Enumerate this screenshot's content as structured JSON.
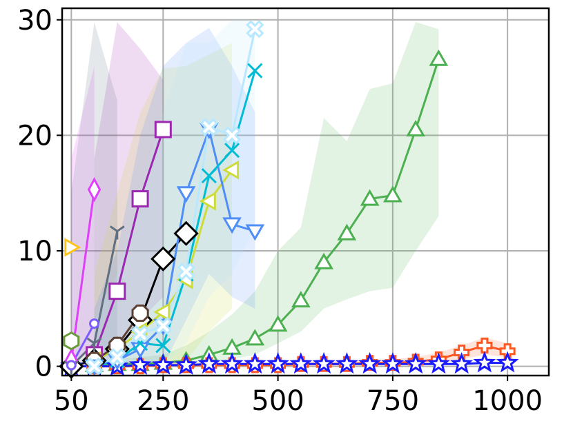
{
  "chart_data": {
    "type": "line",
    "title": "",
    "xlabel": "",
    "ylabel": "",
    "xlim": [
      30,
      1090
    ],
    "ylim": [
      -0.8,
      31
    ],
    "x_ticks": [
      50,
      250,
      500,
      750,
      1000
    ],
    "x_tick_labels": [
      "50",
      "250",
      "500",
      "750",
      "1000"
    ],
    "y_ticks": [
      0,
      10,
      20,
      30
    ],
    "y_tick_labels": [
      "0",
      "10",
      "20",
      "30"
    ],
    "grid": true,
    "legend": "none",
    "series": [
      {
        "color": "#4caf50",
        "marker": "triangle-up",
        "fill": true,
        "x": [
          100,
          150,
          200,
          250,
          300,
          350,
          400,
          450,
          500,
          550,
          600,
          650,
          700,
          750,
          800,
          850
        ],
        "y": [
          0.1,
          0.2,
          0.2,
          0.3,
          0.5,
          1.0,
          1.6,
          2.4,
          3.6,
          5.7,
          9.0,
          11.5,
          14.5,
          14.8,
          20.5,
          26.6
        ],
        "lower": [
          0,
          0,
          0,
          0,
          0,
          0.2,
          0.6,
          1.0,
          2.0,
          3.0,
          5.0,
          5.8,
          6.5,
          6.8,
          10.0,
          13.0
        ],
        "upper": [
          0.5,
          0.6,
          0.8,
          1.0,
          1.8,
          3.0,
          4.5,
          6.5,
          10.0,
          12.0,
          21.5,
          19.5,
          24.0,
          24.5,
          29.8,
          29.2
        ]
      },
      {
        "color": "#ff5722",
        "marker": "plus",
        "fill": true,
        "x": [
          100,
          150,
          200,
          250,
          300,
          350,
          400,
          450,
          500,
          550,
          600,
          650,
          700,
          750,
          800,
          850,
          900,
          950,
          1000
        ],
        "y": [
          0.0,
          0.0,
          0.0,
          0.1,
          0.1,
          0.1,
          0.1,
          0.1,
          0.1,
          0.2,
          0.2,
          0.2,
          0.3,
          0.3,
          0.4,
          0.6,
          1.2,
          1.8,
          1.3
        ],
        "lower": [
          0,
          0,
          0,
          0,
          0,
          0,
          0,
          0,
          0,
          0,
          0,
          0,
          0.1,
          0.1,
          0.1,
          0.2,
          0.6,
          1.0,
          0.8
        ],
        "upper": [
          0.2,
          0.2,
          0.2,
          0.3,
          0.3,
          0.3,
          0.3,
          0.3,
          0.3,
          0.4,
          0.4,
          0.5,
          0.6,
          0.6,
          0.8,
          1.2,
          1.8,
          2.5,
          2.0
        ]
      },
      {
        "color": "#1a1aff",
        "marker": "star",
        "x": [
          50,
          100,
          150,
          200,
          250,
          300,
          350,
          400,
          450,
          500,
          550,
          600,
          650,
          700,
          750,
          800,
          850,
          900,
          950,
          1000
        ],
        "y": [
          0.0,
          0.0,
          0.0,
          0.1,
          0.1,
          0.1,
          0.2,
          0.2,
          0.2,
          0.2,
          0.2,
          0.2,
          0.2,
          0.2,
          0.2,
          0.2,
          0.2,
          0.2,
          0.3,
          0.3
        ]
      },
      {
        "color": "#9c27b0",
        "marker": "square",
        "fill": true,
        "x": [
          100,
          150,
          200,
          250
        ],
        "y": [
          1.0,
          6.5,
          14.5,
          20.5
        ],
        "lower": [
          0,
          1,
          4,
          6
        ],
        "upper": [
          18,
          29.8,
          27.5,
          24.8
        ]
      },
      {
        "color": "#000000",
        "marker": "diamond",
        "facecolor": "#ffffff",
        "x": [
          50,
          100,
          150,
          200,
          250,
          300
        ],
        "y": [
          0.0,
          0.5,
          1.5,
          4.0,
          9.3,
          11.5
        ]
      },
      {
        "color": "#ffc61a",
        "marker": "triangle-right",
        "x": [
          50
        ],
        "y": [
          10.3
        ]
      },
      {
        "color": "#e040fb",
        "marker": "thin-diamond",
        "fill": true,
        "x": [
          50,
          100
        ],
        "y": [
          0.5,
          15.3
        ],
        "lower": [
          0,
          2
        ],
        "upper": [
          18,
          26
        ]
      },
      {
        "color": "#607080",
        "marker": "tri-down",
        "fill": true,
        "x": [
          50,
          100,
          150
        ],
        "y": [
          0.0,
          2.0,
          11.7
        ],
        "lower": [
          0,
          0,
          2
        ],
        "upper": [
          15,
          29.8,
          23
        ]
      },
      {
        "color": "#6a9a3a",
        "marker": "hexagon",
        "x": [
          50
        ],
        "y": [
          2.2
        ]
      },
      {
        "color": "#7c5cff",
        "marker": "circle-small",
        "x": [
          50,
          100
        ],
        "y": [
          0.1,
          3.7
        ]
      },
      {
        "color": "#cddc39",
        "marker": "triangle-left",
        "fill": true,
        "x": [
          100,
          150,
          200,
          250,
          300,
          350,
          400
        ],
        "y": [
          0.5,
          1.5,
          3.0,
          4.7,
          7.5,
          14.3,
          17.0
        ],
        "lower": [
          0,
          0,
          0,
          0,
          0.5,
          3,
          5
        ],
        "upper": [
          8,
          15,
          22,
          25.8,
          26,
          27,
          28
        ]
      },
      {
        "color": "#5c4033",
        "marker": "octagon",
        "facecolor": "#ffffff",
        "x": [
          100,
          150,
          200
        ],
        "y": [
          0.5,
          1.8,
          4.6
        ]
      },
      {
        "color": "#4f8ef7",
        "marker": "triangle-down",
        "fill": true,
        "x": [
          100,
          150,
          200,
          250,
          300,
          350,
          400,
          450
        ],
        "y": [
          0.0,
          0.5,
          1.5,
          3.5,
          15.0,
          20.5,
          12.3,
          11.7
        ],
        "lower": [
          0,
          0,
          0,
          0,
          4,
          8,
          6,
          5
        ],
        "upper": [
          5,
          10,
          20,
          26,
          28,
          29.3,
          26,
          22
        ]
      },
      {
        "color": "#00bcd4",
        "marker": "x",
        "x": [
          100,
          150,
          200,
          250,
          300,
          350,
          400,
          450
        ],
        "y": [
          0.0,
          0.5,
          2.0,
          1.8,
          8.0,
          16.5,
          18.7,
          25.6
        ]
      },
      {
        "color": "#b8e8ff",
        "marker": "x-filled",
        "fill": true,
        "x": [
          100,
          150,
          200,
          250,
          300,
          350,
          400,
          450
        ],
        "y": [
          0.0,
          0.8,
          2.8,
          3.5,
          8.2,
          20.7,
          20.0,
          29.2
        ],
        "lower": [
          0,
          0,
          0,
          0,
          2,
          6,
          8,
          12
        ],
        "upper": [
          4,
          8,
          15,
          22,
          28,
          28,
          30,
          30
        ]
      }
    ]
  }
}
